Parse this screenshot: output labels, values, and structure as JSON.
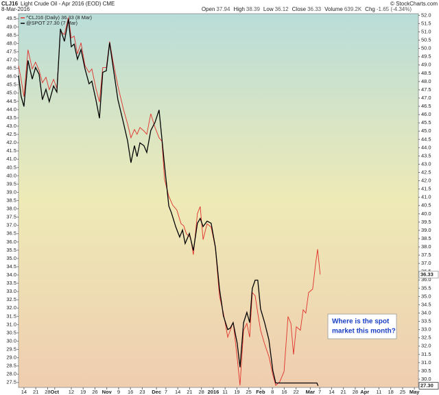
{
  "chart_data": {
    "type": "line",
    "title": "CLJ16",
    "subtitle": "Light Crude Oil - Apr 2016 (EOD) CME",
    "date": "8-Mar-2016",
    "credit": "© StockCharts.com",
    "stats": [
      [
        "Open",
        "37.94"
      ],
      [
        "High",
        "38.39"
      ],
      [
        "Low",
        "36.12"
      ],
      [
        "Close",
        "36.33"
      ],
      [
        "Volume",
        "639.2K"
      ],
      [
        "Chg",
        "-1.65 (-4.34%)"
      ]
    ],
    "annotation": [
      "Where is the spot",
      "market this month?"
    ],
    "xlim": [
      -2.3,
      166.7
    ],
    "xticks": [
      {
        "value": 0,
        "label": "14"
      },
      {
        "value": 5,
        "label": "21"
      },
      {
        "value": 10,
        "label": "28"
      },
      {
        "value": 13,
        "label": "Oct"
      },
      {
        "value": 20,
        "label": "12"
      },
      {
        "value": 25,
        "label": "19"
      },
      {
        "value": 30,
        "label": "26"
      },
      {
        "value": 35,
        "label": "Nov"
      },
      {
        "value": 40,
        "label": "9"
      },
      {
        "value": 45,
        "label": "16"
      },
      {
        "value": 50,
        "label": "23"
      },
      {
        "value": 56,
        "label": "Dec"
      },
      {
        "value": 60,
        "label": "7"
      },
      {
        "value": 65,
        "label": "14"
      },
      {
        "value": 70,
        "label": "21"
      },
      {
        "value": 75,
        "label": "28"
      },
      {
        "value": 80,
        "label": "2016"
      },
      {
        "value": 85,
        "label": "11"
      },
      {
        "value": 90,
        "label": "19"
      },
      {
        "value": 95,
        "label": "25"
      },
      {
        "value": 100,
        "label": "Feb"
      },
      {
        "value": 105,
        "label": "8"
      },
      {
        "value": 110,
        "label": "16"
      },
      {
        "value": 115,
        "label": "22"
      },
      {
        "value": 121,
        "label": "Mar"
      },
      {
        "value": 125,
        "label": "7"
      },
      {
        "value": 130,
        "label": "14"
      },
      {
        "value": 135,
        "label": "21"
      },
      {
        "value": 140,
        "label": "28"
      },
      {
        "value": 144,
        "label": "Apr"
      },
      {
        "value": 150,
        "label": "11"
      },
      {
        "value": 155,
        "label": "18"
      },
      {
        "value": 160,
        "label": "25"
      },
      {
        "value": 165,
        "label": "May"
      }
    ],
    "ylim": [
      27.2,
      49.8
    ],
    "yticks": [
      27.5,
      {
        "value": 28,
        "label": "28.0"
      },
      28.5,
      {
        "value": 29,
        "label": "29.0"
      },
      29.5,
      {
        "value": 30,
        "label": "30.0"
      },
      30.5,
      {
        "value": 31,
        "label": "31.0"
      },
      31.5,
      {
        "value": 32,
        "label": "32.0"
      },
      32.5,
      {
        "value": 33,
        "label": "33.0"
      },
      33.5,
      {
        "value": 34,
        "label": "34.0"
      },
      34.5,
      {
        "value": 35,
        "label": "35.0"
      },
      35.5,
      {
        "value": 36,
        "label": "36.0"
      },
      36.5,
      {
        "value": 37,
        "label": "37.0"
      },
      37.5,
      {
        "value": 38,
        "label": "38.0"
      },
      38.5,
      {
        "value": 39,
        "label": "39.0"
      },
      39.5,
      {
        "value": 40,
        "label": "40.0"
      },
      40.5,
      {
        "value": 41,
        "label": "41.0"
      },
      41.5,
      {
        "value": 42,
        "label": "42.0"
      },
      42.5,
      {
        "value": 43,
        "label": "43.0"
      },
      43.5,
      {
        "value": 44,
        "label": "44.0"
      },
      44.5,
      {
        "value": 45,
        "label": "45.0"
      },
      45.5,
      {
        "value": 46,
        "label": "46.0"
      },
      46.5,
      {
        "value": 47,
        "label": "47.0"
      },
      47.5,
      {
        "value": 48,
        "label": "48.0"
      },
      48.5,
      {
        "value": 49,
        "label": "49.0"
      },
      49.5
    ],
    "y2lim": [
      29.5,
      52.1
    ],
    "y2ticks": [
      {
        "value": 30,
        "label": "30.0"
      },
      30.5,
      {
        "value": 31,
        "label": "31.0"
      },
      31.5,
      {
        "value": 32,
        "label": "32.0"
      },
      32.5,
      {
        "value": 33,
        "label": "33.0"
      },
      33.5,
      {
        "value": 34,
        "label": "34.0"
      },
      34.5,
      {
        "value": 35,
        "label": "35.0"
      },
      35.5,
      {
        "value": 36,
        "label": "36.0"
      },
      36.5,
      {
        "value": 37,
        "label": "37.0"
      },
      37.5,
      {
        "value": 38,
        "label": "38.0"
      },
      38.5,
      {
        "value": 39,
        "label": "39.0"
      },
      39.5,
      {
        "value": 40,
        "label": "40.0"
      },
      40.5,
      {
        "value": 41,
        "label": "41.0"
      },
      41.5,
      {
        "value": 42,
        "label": "42.0"
      },
      42.5,
      {
        "value": 43,
        "label": "43.0"
      },
      43.5,
      {
        "value": 44,
        "label": "44.0"
      },
      44.5,
      {
        "value": 45,
        "label": "45.0"
      },
      45.5,
      {
        "value": 46,
        "label": "46.0"
      },
      46.5,
      {
        "value": 47,
        "label": "47.0"
      },
      47.5,
      {
        "value": 48,
        "label": "48.0"
      },
      48.5,
      {
        "value": 49,
        "label": "49.0"
      },
      49.5,
      {
        "value": 50,
        "label": "50.0"
      },
      50.5,
      {
        "value": 51,
        "label": "51.0"
      },
      51.5,
      {
        "value": 52,
        "label": "52.0"
      }
    ],
    "series": [
      {
        "name": "^CLJ16 (Daily) 36.33 (8 Mar)",
        "color": "#e0302a",
        "axis": "y2",
        "last_label": "36.33",
        "x": [
          -2.3,
          -1.2,
          0,
          1.7,
          3.5,
          4.9,
          6.4,
          7.8,
          9.3,
          10.7,
          12.5,
          13.9,
          15.4,
          17.1,
          18.8,
          20,
          21.2,
          22.6,
          24.1,
          25.8,
          27.5,
          28.7,
          30.4,
          31.9,
          33.3,
          34.8,
          36.2,
          37.7,
          39.7,
          42,
          43.8,
          45.2,
          46.7,
          47.8,
          49,
          50.7,
          51.9,
          53.6,
          55.4,
          57.1,
          58.3,
          59.4,
          61.2,
          62.9,
          64.6,
          66.4,
          67.5,
          68.7,
          70.4,
          71.6,
          73.3,
          74.5,
          75.7,
          77.4,
          79.1,
          80.9,
          82.6,
          84.3,
          86.1,
          87.2,
          88.4,
          90.1,
          91.3,
          92.8,
          94.2,
          95.4,
          96.5,
          97.7,
          98.8,
          100,
          101.7,
          103.5,
          105.2,
          106.4,
          108.1,
          109.9,
          111.6,
          112.8,
          113.9,
          115.1,
          116.8,
          118,
          119.1,
          120.3,
          122,
          123.2,
          124.1,
          125.2
        ],
        "values": [
          48.96,
          48.13,
          47.09,
          49.92,
          48.76,
          49.17,
          48.67,
          47.93,
          48.26,
          47.51,
          48.13,
          47.59,
          51.04,
          50.84,
          51.88,
          50.63,
          50.75,
          49.67,
          50.34,
          48.96,
          48.55,
          48.76,
          47.59,
          46.76,
          48.84,
          48.84,
          50.42,
          49.17,
          47.72,
          46.35,
          45.43,
          44.6,
          45.1,
          44.81,
          45.22,
          45.01,
          44.81,
          46.05,
          45.22,
          44.6,
          44.39,
          42.1,
          41.06,
          40.52,
          40.23,
          39.4,
          39.28,
          38.78,
          38.57,
          37.53,
          40.02,
          40.44,
          38.44,
          39.4,
          39.19,
          37.95,
          35.04,
          34.0,
          32.54,
          32.96,
          33.46,
          31.29,
          29.63,
          32.96,
          33.37,
          32.54,
          35.24,
          35.04,
          34.0,
          32.96,
          32.12,
          31.38,
          30.25,
          29.63,
          29.84,
          30.46,
          33.79,
          33.37,
          31.5,
          33.17,
          32.96,
          34.2,
          34.0,
          35.24,
          35.45,
          36.91,
          37.86,
          36.33
        ]
      },
      {
        "name": "@SPOT 27.30 (7 Mar)",
        "color": "#000000",
        "axis": "y",
        "last_label": "27.30",
        "x": [
          -2.3,
          -1.2,
          0,
          1.7,
          3.5,
          4.9,
          6.4,
          7.8,
          9.3,
          10.7,
          12.5,
          13.9,
          15.4,
          17.1,
          18.8,
          20,
          21.2,
          22.6,
          24.1,
          25.8,
          27.5,
          28.7,
          30.4,
          31.9,
          33.3,
          34.8,
          36.2,
          37.7,
          39.7,
          42,
          43.8,
          45.2,
          46.7,
          47.8,
          49,
          50.7,
          51.9,
          53.6,
          55.4,
          57.1,
          59.4,
          61.2,
          62.3,
          64.1,
          65.8,
          67,
          68.1,
          69.9,
          71.6,
          73.3,
          74.5,
          75.7,
          77.4,
          79.1,
          80.9,
          82.6,
          84.3,
          86.1,
          87.2,
          88.4,
          90.1,
          91.3,
          92.8,
          94.2,
          95.4,
          96.5,
          97.7,
          98.8,
          100,
          101.7,
          103.5,
          105.2,
          106.4,
          123.8,
          124.3
        ],
        "values": [
          46.06,
          44.8,
          44.19,
          46.97,
          45.85,
          46.55,
          46.14,
          44.6,
          45.23,
          44.48,
          45.43,
          45.06,
          48.88,
          48.13,
          49.46,
          47.8,
          47.96,
          47.05,
          47.63,
          46.47,
          45.56,
          45.72,
          44.6,
          43.48,
          46.26,
          46.35,
          48.05,
          46.55,
          44.6,
          43.23,
          42.11,
          40.79,
          41.82,
          41.16,
          41.99,
          41.82,
          41.41,
          42.74,
          43.23,
          43.98,
          40.66,
          38.17,
          37.76,
          36.93,
          36.3,
          36.72,
          35.9,
          36.51,
          35.48,
          37.13,
          37.42,
          36.93,
          37.26,
          37.13,
          35.68,
          33.19,
          31.53,
          30.7,
          30.79,
          31.12,
          29.87,
          28.42,
          31.12,
          31.74,
          31.12,
          33.19,
          33.69,
          33.69,
          31.95,
          31.12,
          30.08,
          28.21,
          27.47,
          27.47,
          27.3
        ]
      }
    ]
  }
}
